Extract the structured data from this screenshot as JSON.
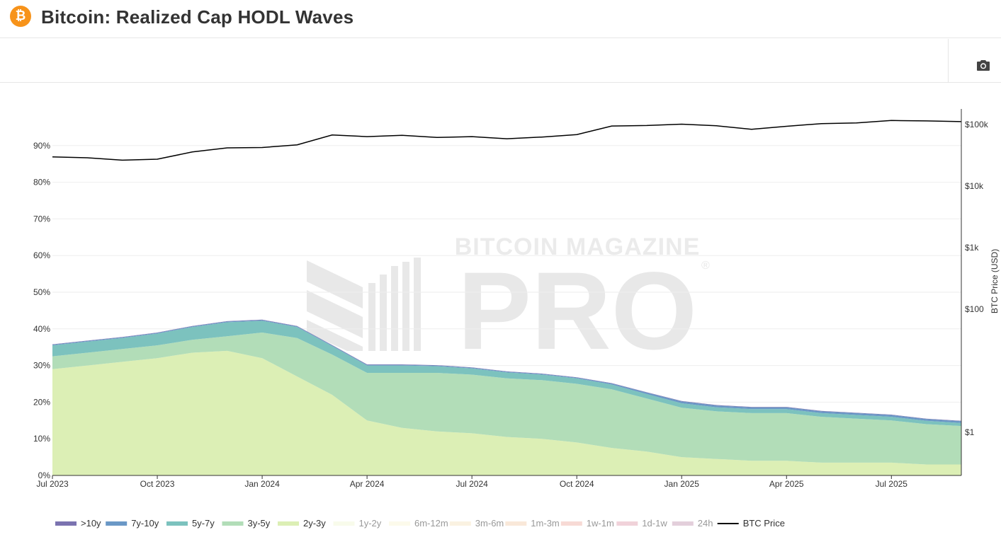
{
  "header": {
    "title": "Bitcoin: Realized Cap HODL Waves",
    "logo_glyph": "₿"
  },
  "toolbar": {
    "camera_icon": "camera-icon"
  },
  "watermark": {
    "line1": "BITCOIN MAGAZINE",
    "line2": "PRO",
    "mark": "®"
  },
  "colors": {
    "gt10y": "#7b73b0",
    "y7_10": "#6a98c6",
    "y5_7": "#7cc2be",
    "y3_5": "#b2ddb8",
    "y2_3": "#dcefb5",
    "y1_2": "#f2f9d8",
    "m6_12": "#fbf6d8",
    "m3_6": "#f7e6c4",
    "m1_3": "#f5d2b4",
    "w1_m1": "#f0b6ad",
    "d1_w1": "#e3a6b5",
    "h24": "#c9a0b8",
    "btc": "#000000"
  },
  "chart_data": {
    "type": "area",
    "stacked": true,
    "title": "Bitcoin: Realized Cap HODL Waves",
    "ylabel_left": "",
    "ylabel_right": "BTC Price (USD)",
    "ylim_left": [
      0,
      100
    ],
    "yticks_left": [
      "0%",
      "10%",
      "20%",
      "30%",
      "40%",
      "50%",
      "60%",
      "70%",
      "80%",
      "90%"
    ],
    "yticks_right": [
      "$1",
      "$100",
      "$1k",
      "$10k",
      "$100k"
    ],
    "right_axis_scale": "log",
    "xtick_labels": [
      "Jul 2023",
      "Oct 2023",
      "Jan 2024",
      "Apr 2024",
      "Jul 2024",
      "Oct 2024",
      "Jan 2025",
      "Apr 2025",
      "Jul 2025"
    ],
    "x": [
      "2023-07",
      "2023-08",
      "2023-09",
      "2023-10",
      "2023-11",
      "2023-12",
      "2024-01",
      "2024-02",
      "2024-03",
      "2024-04",
      "2024-05",
      "2024-06",
      "2024-07",
      "2024-08",
      "2024-09",
      "2024-10",
      "2024-11",
      "2024-12",
      "2025-01",
      "2025-02",
      "2025-03",
      "2025-04",
      "2025-05",
      "2025-06",
      "2025-07",
      "2025-08",
      "2025-09"
    ],
    "series": [
      {
        "name": "2y-3y",
        "color_key": "y2_3",
        "values": [
          29,
          30,
          31,
          32,
          33.5,
          34,
          32,
          27,
          22,
          15,
          13,
          12,
          11.5,
          10.5,
          10,
          9,
          7.5,
          6.5,
          5,
          4.5,
          4,
          4,
          3.5,
          3.5,
          3.5,
          3,
          3
        ]
      },
      {
        "name": "3y-5y",
        "color_key": "y3_5",
        "values": [
          3.5,
          3.5,
          3.5,
          3.5,
          3.5,
          4,
          7,
          10.5,
          11,
          13,
          15,
          16,
          16,
          16,
          16,
          16,
          16,
          14.5,
          13.5,
          13,
          13,
          13,
          12.5,
          12,
          11.5,
          11,
          10.5
        ]
      },
      {
        "name": "5y-7y",
        "color_key": "y5_7",
        "values": [
          3,
          3,
          3,
          3.2,
          3.5,
          3.8,
          3.2,
          3,
          2.3,
          2,
          2,
          1.8,
          1.7,
          1.6,
          1.5,
          1.5,
          1.3,
          1.2,
          1.2,
          1.1,
          1.1,
          1.1,
          1,
          1,
          1,
          0.9,
          0.8
        ]
      },
      {
        "name": "7y-10y",
        "color_key": "y7_10",
        "values": [
          0.2,
          0.2,
          0.2,
          0.2,
          0.2,
          0.2,
          0.2,
          0.2,
          0.2,
          0.2,
          0.2,
          0.2,
          0.2,
          0.2,
          0.2,
          0.2,
          0.3,
          0.4,
          0.5,
          0.5,
          0.5,
          0.5,
          0.5,
          0.5,
          0.5,
          0.5,
          0.5
        ]
      },
      {
        "name": ">10y",
        "color_key": "gt10y",
        "values": [
          0.1,
          0.1,
          0.1,
          0.1,
          0.1,
          0.1,
          0.1,
          0.1,
          0.1,
          0.1,
          0.1,
          0.1,
          0.1,
          0.1,
          0.1,
          0.1,
          0.1,
          0.1,
          0.1,
          0.1,
          0.1,
          0.1,
          0.1,
          0.1,
          0.1,
          0.1,
          0.1
        ]
      }
    ],
    "btc_price": [
      30000,
      29000,
      26500,
      27500,
      36000,
      42000,
      42500,
      47000,
      68000,
      64000,
      67000,
      62000,
      64000,
      59000,
      63000,
      69000,
      95000,
      97000,
      102000,
      96000,
      84000,
      94000,
      104000,
      107000,
      117000,
      115000,
      112000
    ],
    "legend": [
      {
        "label": ">10y",
        "color_key": "gt10y",
        "kind": "band",
        "visible": true
      },
      {
        "label": "7y-10y",
        "color_key": "y7_10",
        "kind": "band",
        "visible": true
      },
      {
        "label": "5y-7y",
        "color_key": "y5_7",
        "kind": "band",
        "visible": true
      },
      {
        "label": "3y-5y",
        "color_key": "y3_5",
        "kind": "band",
        "visible": true
      },
      {
        "label": "2y-3y",
        "color_key": "y2_3",
        "kind": "band",
        "visible": true
      },
      {
        "label": "1y-2y",
        "color_key": "y1_2",
        "kind": "band",
        "visible": false
      },
      {
        "label": "6m-12m",
        "color_key": "m6_12",
        "kind": "band",
        "visible": false
      },
      {
        "label": "3m-6m",
        "color_key": "m3_6",
        "kind": "band",
        "visible": false
      },
      {
        "label": "1m-3m",
        "color_key": "m1_3",
        "kind": "band",
        "visible": false
      },
      {
        "label": "1w-1m",
        "color_key": "w1_m1",
        "kind": "band",
        "visible": false
      },
      {
        "label": "1d-1w",
        "color_key": "d1_w1",
        "kind": "band",
        "visible": false
      },
      {
        "label": "24h",
        "color_key": "h24",
        "kind": "band",
        "visible": false
      },
      {
        "label": "BTC Price",
        "color_key": "btc",
        "kind": "line",
        "visible": true
      }
    ]
  }
}
